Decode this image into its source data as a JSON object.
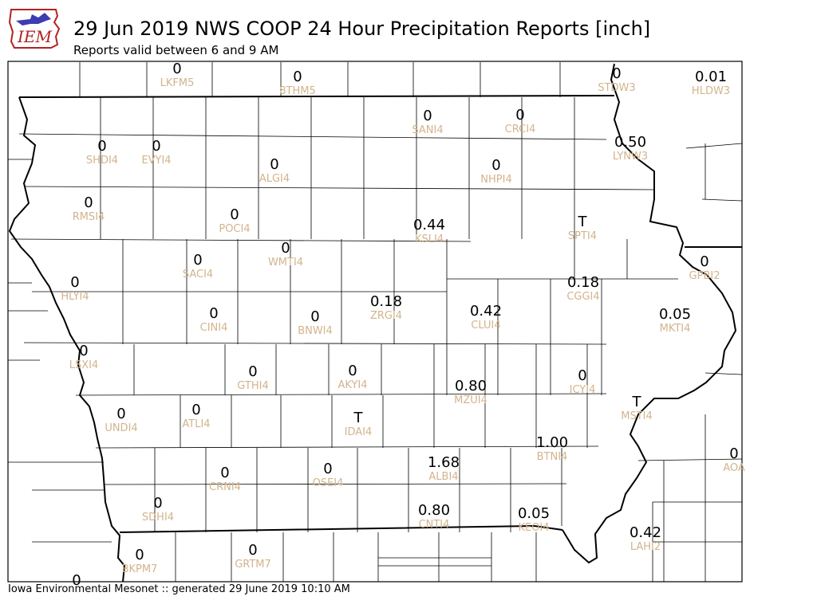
{
  "header": {
    "logo_text": "IEM",
    "title": "29 Jun 2019 NWS COOP 24 Hour Precipitation Reports [inch]",
    "subtitle": "Reports valid between 6 and 9 AM"
  },
  "footer": {
    "text": "Iowa Environmental Mesonet :: generated 29 June 2019 10:10 AM"
  },
  "colors": {
    "station_id": "#d2b48c",
    "value": "#000000",
    "county_lines": "#000000",
    "state_lines": "#000000",
    "logo_accent": "#b22222",
    "logo_blue": "#1a1aa6"
  },
  "stations": [
    {
      "id": "LKFM5",
      "value": "0"
    },
    {
      "id": "8THM5",
      "value": "0"
    },
    {
      "id": "STDW3",
      "value": "0"
    },
    {
      "id": "HLDW3",
      "value": "0.01"
    },
    {
      "id": "SANI4",
      "value": "0"
    },
    {
      "id": "CRCI4",
      "value": "0"
    },
    {
      "id": "LYNW3",
      "value": "0.50"
    },
    {
      "id": "SHDI4",
      "value": "0"
    },
    {
      "id": "EVYI4",
      "value": "0"
    },
    {
      "id": "ALGI4",
      "value": "0"
    },
    {
      "id": "NHPI4",
      "value": "0"
    },
    {
      "id": "RMSI4",
      "value": "0"
    },
    {
      "id": "POCI4",
      "value": "0"
    },
    {
      "id": "KSLI4",
      "value": "0.44"
    },
    {
      "id": "SPTI4",
      "value": "T"
    },
    {
      "id": "SACI4",
      "value": "0"
    },
    {
      "id": "WMTI4",
      "value": "0"
    },
    {
      "id": "GPBI2",
      "value": "0"
    },
    {
      "id": "HLYI4",
      "value": "0"
    },
    {
      "id": "CGGI4",
      "value": "0.18"
    },
    {
      "id": "ZRGI4",
      "value": "0.18"
    },
    {
      "id": "CLUI4",
      "value": "0.42"
    },
    {
      "id": "CINI4",
      "value": "0"
    },
    {
      "id": "BNWI4",
      "value": "0"
    },
    {
      "id": "MKTI4",
      "value": "0.05"
    },
    {
      "id": "LSXI4",
      "value": "0"
    },
    {
      "id": "GTHI4",
      "value": "0"
    },
    {
      "id": "AKYI4",
      "value": "0"
    },
    {
      "id": "ICYI4",
      "value": "0"
    },
    {
      "id": "MZUI4",
      "value": "0.80"
    },
    {
      "id": "MSTI4",
      "value": "T"
    },
    {
      "id": "UNDI4",
      "value": "0"
    },
    {
      "id": "ATLI4",
      "value": "0"
    },
    {
      "id": "IDAI4",
      "value": "T"
    },
    {
      "id": "BTNI4",
      "value": "1.00"
    },
    {
      "id": "AOA",
      "value": "0"
    },
    {
      "id": "CRNI4",
      "value": "0"
    },
    {
      "id": "OSEI4",
      "value": "0"
    },
    {
      "id": "ALBI4",
      "value": "1.68"
    },
    {
      "id": "SDHI4",
      "value": "0"
    },
    {
      "id": "CNTI4",
      "value": "0.80"
    },
    {
      "id": "KEOI4",
      "value": "0.05"
    },
    {
      "id": "LAHI2",
      "value": "0.42"
    },
    {
      "id": "BKPM7",
      "value": "0"
    },
    {
      "id": "GRTM7",
      "value": "0"
    },
    {
      "id": "",
      "value": "0"
    }
  ]
}
